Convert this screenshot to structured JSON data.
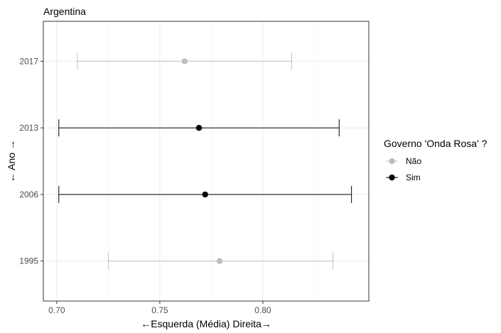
{
  "chart_data": {
    "type": "scatter",
    "title": "Argentina",
    "xlabel": "←Esquerda (Média) Direita→",
    "ylabel": "← Ano →",
    "xlim": [
      0.6935,
      0.8514
    ],
    "x_ticks": [
      0.7,
      0.75,
      0.8
    ],
    "x_tick_labels": [
      "0.70",
      "0.75",
      "0.80"
    ],
    "categories": [
      "1995",
      "2006",
      "2013",
      "2017"
    ],
    "grid": true,
    "legend": {
      "title": "Governo 'Onda Rosa' ?",
      "position": "right",
      "entries": [
        {
          "label": "Não",
          "color": "#bebebe"
        },
        {
          "label": "Sim",
          "color": "#000000"
        }
      ]
    },
    "points": [
      {
        "year": "2017",
        "mean": 0.762,
        "low": 0.71,
        "high": 0.814,
        "group": "Não"
      },
      {
        "year": "2013",
        "mean": 0.769,
        "low": 0.701,
        "high": 0.837,
        "group": "Sim"
      },
      {
        "year": "2006",
        "mean": 0.772,
        "low": 0.701,
        "high": 0.843,
        "group": "Sim"
      },
      {
        "year": "1995",
        "mean": 0.779,
        "low": 0.725,
        "high": 0.834,
        "group": "Não"
      }
    ]
  }
}
